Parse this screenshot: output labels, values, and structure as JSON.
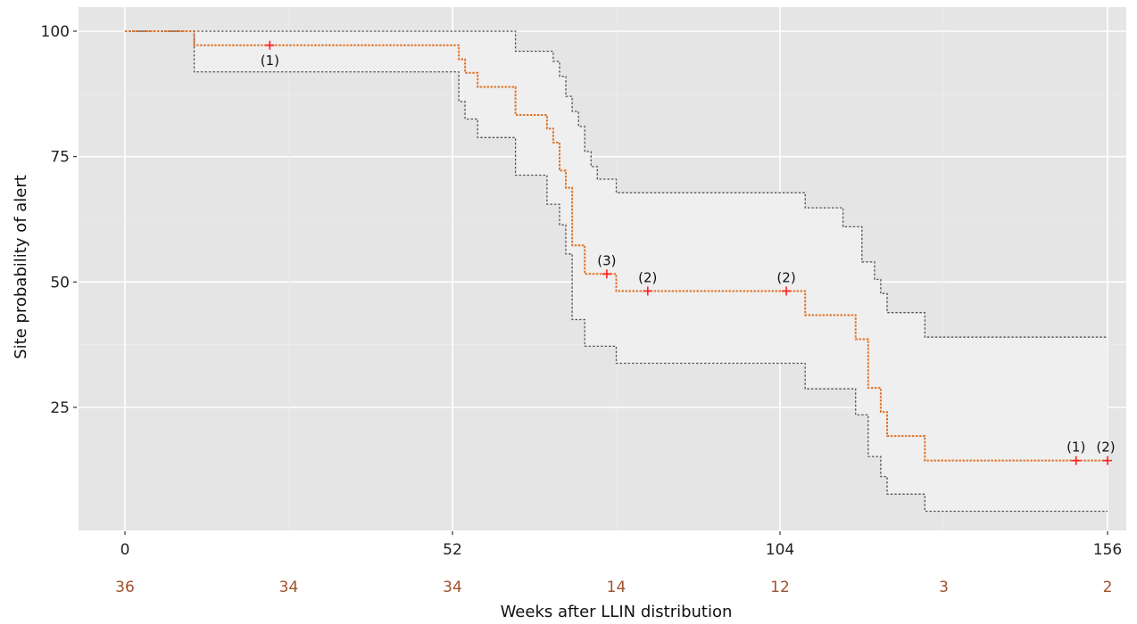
{
  "chart_data": {
    "type": "line",
    "subtype": "kaplan-meier-step",
    "title": "",
    "xlabel": "Weeks after LLIN distribution",
    "ylabel": "Site probability of alert",
    "xlim": [
      0,
      156
    ],
    "ylim": [
      0,
      100
    ],
    "x_ticks": [
      0,
      52,
      104,
      156
    ],
    "y_ticks": [
      25,
      50,
      75,
      100
    ],
    "grid": true,
    "number_at_risk": {
      "times": [
        0,
        26,
        52,
        78,
        104,
        130,
        156
      ],
      "values": [
        "36",
        "34",
        "34",
        "14",
        "12",
        "3",
        "2"
      ]
    },
    "colors": {
      "panel": "#e5e5e5",
      "ribbon": "#efefef",
      "estimate": "#e0742a",
      "ci": "#555555",
      "censor": "#ff2020",
      "risk_text": "#a0522d"
    },
    "series": [
      {
        "role": "estimate",
        "points": [
          [
            0,
            100
          ],
          [
            11,
            100
          ],
          [
            11,
            97.2
          ],
          [
            53,
            97.2
          ],
          [
            53,
            94.4
          ],
          [
            54,
            94.4
          ],
          [
            54,
            91.7
          ],
          [
            56,
            91.7
          ],
          [
            56,
            88.9
          ],
          [
            62,
            88.9
          ],
          [
            62,
            83.3
          ],
          [
            67,
            83.3
          ],
          [
            67,
            80.6
          ],
          [
            68,
            80.6
          ],
          [
            68,
            77.8
          ],
          [
            69,
            77.8
          ],
          [
            69,
            72.2
          ],
          [
            70,
            72.2
          ],
          [
            70,
            68.8
          ],
          [
            71,
            68.8
          ],
          [
            71,
            57.3
          ],
          [
            73,
            57.3
          ],
          [
            73,
            51.6
          ],
          [
            78,
            51.6
          ],
          [
            78,
            48.2
          ],
          [
            108,
            48.2
          ],
          [
            108,
            43.4
          ],
          [
            116,
            43.4
          ],
          [
            116,
            38.6
          ],
          [
            118,
            38.6
          ],
          [
            118,
            28.9
          ],
          [
            120,
            28.9
          ],
          [
            120,
            24.1
          ],
          [
            121,
            24.1
          ],
          [
            121,
            19.3
          ],
          [
            127,
            19.3
          ],
          [
            127,
            14.4
          ],
          [
            156,
            14.4
          ]
        ]
      },
      {
        "role": "upper_ci",
        "points": [
          [
            0,
            100
          ],
          [
            62,
            100
          ],
          [
            62,
            96
          ],
          [
            68,
            96
          ],
          [
            68,
            94
          ],
          [
            69,
            94
          ],
          [
            69,
            91
          ],
          [
            70,
            91
          ],
          [
            70,
            87
          ],
          [
            71,
            87
          ],
          [
            71,
            84
          ],
          [
            72,
            84
          ],
          [
            72,
            81
          ],
          [
            73,
            81
          ],
          [
            73,
            76
          ],
          [
            74,
            76
          ],
          [
            74,
            73
          ],
          [
            75,
            73
          ],
          [
            75,
            70.5
          ],
          [
            78,
            70.5
          ],
          [
            78,
            67.8
          ],
          [
            108,
            67.8
          ],
          [
            108,
            64.8
          ],
          [
            114,
            64.8
          ],
          [
            114,
            61
          ],
          [
            117,
            61
          ],
          [
            117,
            54
          ],
          [
            119,
            54
          ],
          [
            119,
            50.5
          ],
          [
            120,
            50.5
          ],
          [
            120,
            47.7
          ],
          [
            121,
            47.7
          ],
          [
            121,
            43.9
          ],
          [
            127,
            43.9
          ],
          [
            127,
            39
          ],
          [
            156,
            39
          ]
        ]
      },
      {
        "role": "lower_ci",
        "points": [
          [
            0,
            100
          ],
          [
            11,
            100
          ],
          [
            11,
            91.9
          ],
          [
            53,
            91.9
          ],
          [
            53,
            86
          ],
          [
            54,
            86
          ],
          [
            54,
            82.5
          ],
          [
            56,
            82.5
          ],
          [
            56,
            78.8
          ],
          [
            62,
            78.8
          ],
          [
            62,
            71.3
          ],
          [
            67,
            71.3
          ],
          [
            67,
            65.5
          ],
          [
            69,
            65.5
          ],
          [
            69,
            61.4
          ],
          [
            70,
            61.4
          ],
          [
            70,
            55.6
          ],
          [
            71,
            55.6
          ],
          [
            71,
            42.5
          ],
          [
            73,
            42.5
          ],
          [
            73,
            37.2
          ],
          [
            78,
            37.2
          ],
          [
            78,
            33.8
          ],
          [
            108,
            33.8
          ],
          [
            108,
            28.7
          ],
          [
            116,
            28.7
          ],
          [
            116,
            23.5
          ],
          [
            118,
            23.5
          ],
          [
            118,
            15.2
          ],
          [
            120,
            15.2
          ],
          [
            120,
            11.2
          ],
          [
            121,
            11.2
          ],
          [
            121,
            7.7
          ],
          [
            127,
            7.7
          ],
          [
            127,
            4.3
          ],
          [
            156,
            4.3
          ]
        ]
      }
    ],
    "censor_marks": [
      {
        "x": 23,
        "y": 97.2,
        "label": "(1)",
        "label_position": "below"
      },
      {
        "x": 76.5,
        "y": 51.6,
        "label": "(3)",
        "label_position": "above"
      },
      {
        "x": 83,
        "y": 48.2,
        "label": "(2)",
        "label_position": "above"
      },
      {
        "x": 105,
        "y": 48.2,
        "label": "(2)",
        "label_position": "above"
      },
      {
        "x": 151,
        "y": 14.4,
        "label": "(1)",
        "label_position": "above"
      },
      {
        "x": 156,
        "y": 14.4,
        "label": "(2)",
        "label_position": "above"
      }
    ]
  }
}
